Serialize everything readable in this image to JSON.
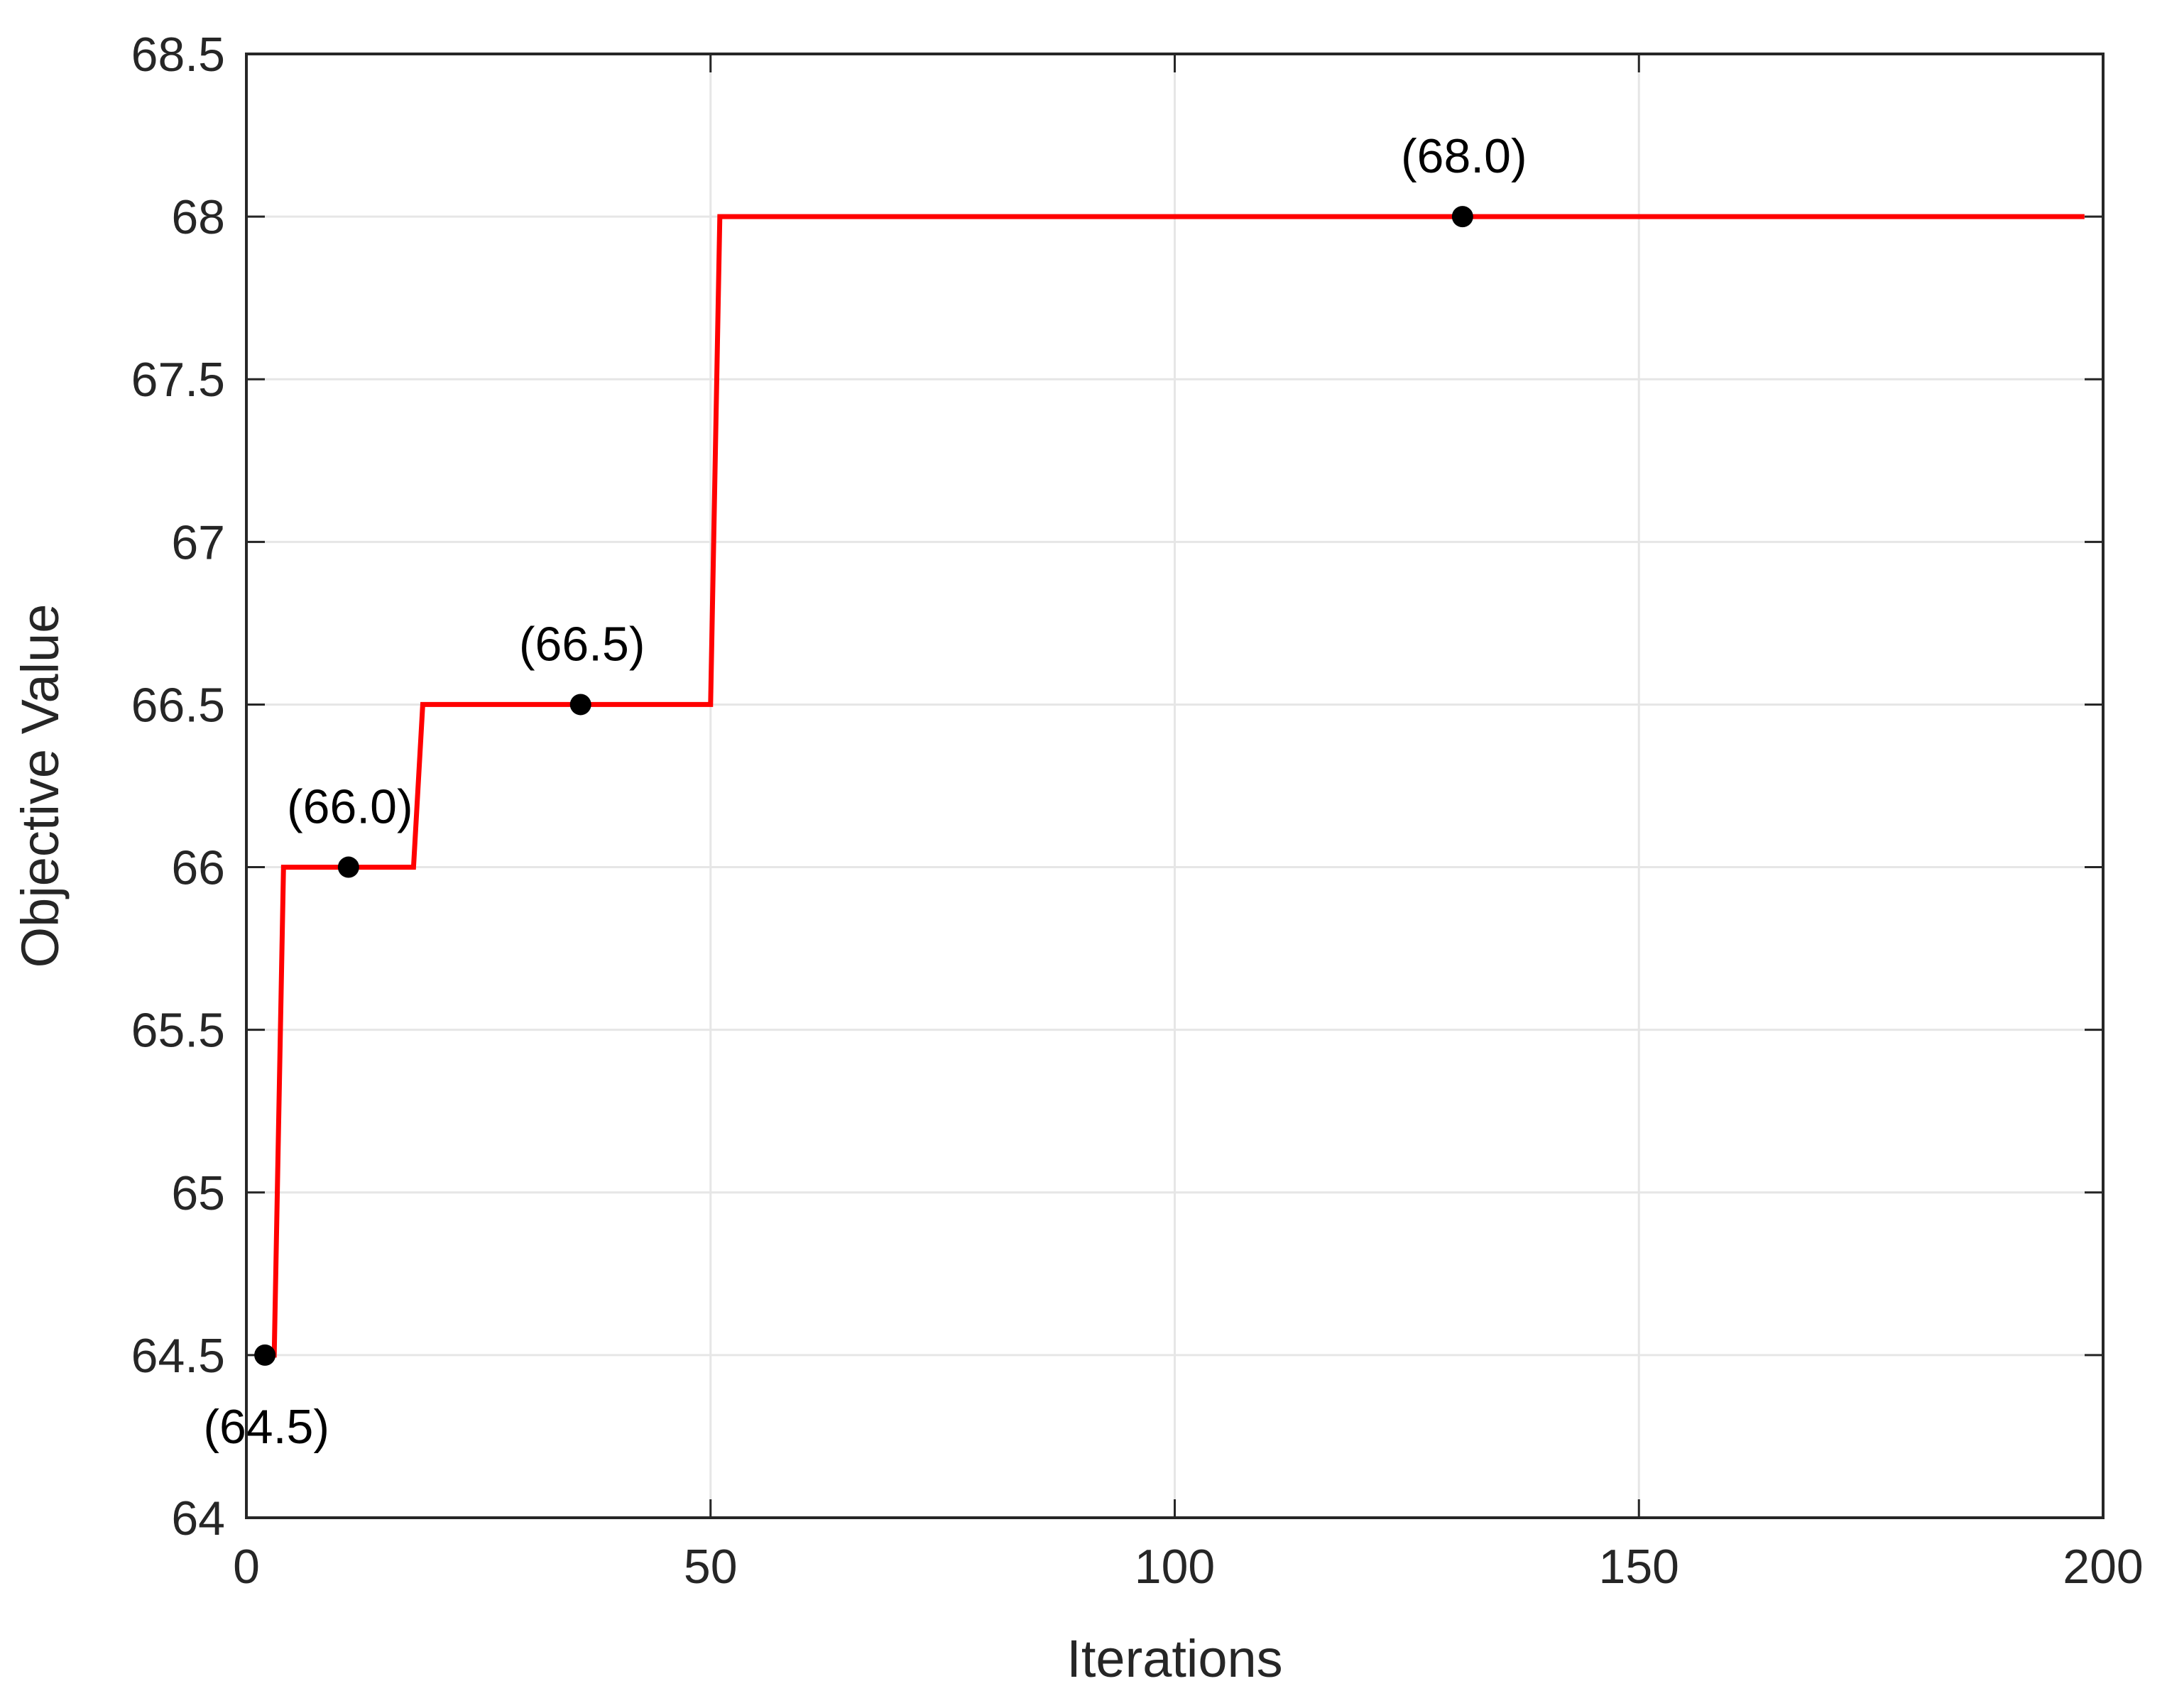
{
  "chart_data": {
    "type": "line",
    "title": "",
    "xlabel": "Iterations",
    "ylabel": "Objective Value",
    "xlim": [
      0,
      200
    ],
    "ylim": [
      64,
      68.5
    ],
    "xticks": [
      0,
      50,
      100,
      150,
      200
    ],
    "xtick_labels": [
      "0",
      "50",
      "100",
      "150",
      "200"
    ],
    "yticks": [
      64,
      64.5,
      65,
      65.5,
      66,
      66.5,
      67,
      67.5,
      68,
      68.5
    ],
    "ytick_labels": [
      "64",
      "64.5",
      "65",
      "65.5",
      "66",
      "66.5",
      "67",
      "67.5",
      "68",
      "68.5"
    ],
    "grid": true,
    "series": [
      {
        "color": "#ff0000",
        "style": "step",
        "x": [
          2,
          3,
          4,
          18,
          19,
          50,
          51,
          198
        ],
        "y": [
          64.5,
          64.5,
          66.0,
          66.0,
          66.5,
          66.5,
          68.0,
          68.0
        ]
      }
    ],
    "annotations": [
      {
        "x": 2,
        "y": 64.5,
        "label": "(64.5)",
        "label_position": "below"
      },
      {
        "x": 11,
        "y": 66.0,
        "label": "(66.0)",
        "label_position": "above"
      },
      {
        "x": 36,
        "y": 66.5,
        "label": "(66.5)",
        "label_position": "above"
      },
      {
        "x": 131,
        "y": 68.0,
        "label": "(68.0)",
        "label_position": "above"
      }
    ],
    "marker_color": "#000000",
    "grid_color": "#e6e6e6",
    "axis_color": "#262626"
  }
}
